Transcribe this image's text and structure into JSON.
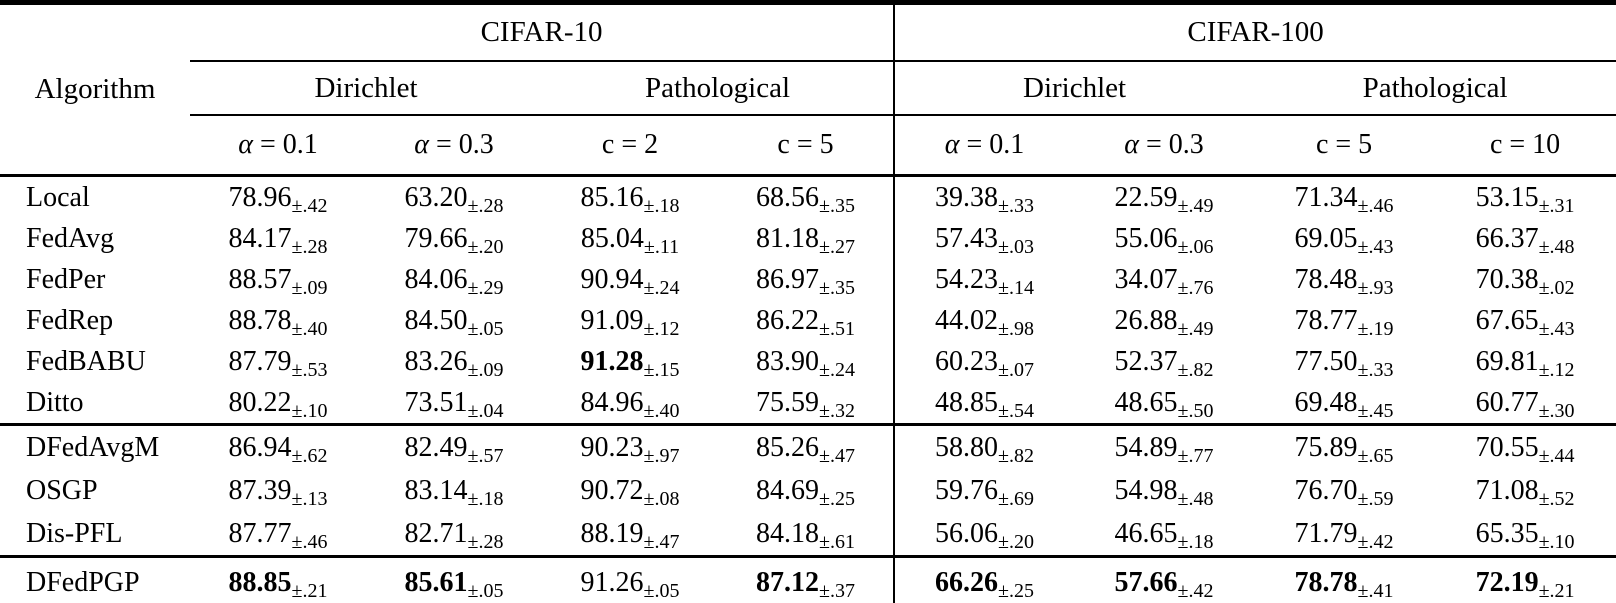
{
  "colors": {
    "text": "#000000",
    "background": "#ffffff",
    "rule": "#000000"
  },
  "table": {
    "corner_header": "Algorithm",
    "datasets": [
      {
        "name": "CIFAR-10",
        "partitions": [
          {
            "name": "Dirichlet",
            "columns": [
              "α = 0.1",
              "α = 0.3"
            ]
          },
          {
            "name": "Pathological",
            "columns": [
              "c = 2",
              "c = 5"
            ]
          }
        ]
      },
      {
        "name": "CIFAR-100",
        "partitions": [
          {
            "name": "Dirichlet",
            "columns": [
              "α = 0.1",
              "α = 0.3"
            ]
          },
          {
            "name": "Pathological",
            "columns": [
              "c = 5",
              "c = 10"
            ]
          }
        ]
      }
    ],
    "sections": [
      {
        "rows": [
          {
            "name": "Local",
            "cells": [
              [
                "78.96",
                "±.42"
              ],
              [
                "63.20",
                "±.28"
              ],
              [
                "85.16",
                "±.18"
              ],
              [
                "68.56",
                "±.35"
              ],
              [
                "39.38",
                "±.33"
              ],
              [
                "22.59",
                "±.49"
              ],
              [
                "71.34",
                "±.46"
              ],
              [
                "53.15",
                "±.31"
              ]
            ]
          },
          {
            "name": "FedAvg",
            "cells": [
              [
                "84.17",
                "±.28"
              ],
              [
                "79.66",
                "±.20"
              ],
              [
                "85.04",
                "±.11"
              ],
              [
                "81.18",
                "±.27"
              ],
              [
                "57.43",
                "±.03"
              ],
              [
                "55.06",
                "±.06"
              ],
              [
                "69.05",
                "±.43"
              ],
              [
                "66.37",
                "±.48"
              ]
            ]
          },
          {
            "name": "FedPer",
            "cells": [
              [
                "88.57",
                "±.09"
              ],
              [
                "84.06",
                "±.29"
              ],
              [
                "90.94",
                "±.24"
              ],
              [
                "86.97",
                "±.35"
              ],
              [
                "54.23",
                "±.14"
              ],
              [
                "34.07",
                "±.76"
              ],
              [
                "78.48",
                "±.93"
              ],
              [
                "70.38",
                "±.02"
              ]
            ]
          },
          {
            "name": "FedRep",
            "cells": [
              [
                "88.78",
                "±.40"
              ],
              [
                "84.50",
                "±.05"
              ],
              [
                "91.09",
                "±.12"
              ],
              [
                "86.22",
                "±.51"
              ],
              [
                "44.02",
                "±.98"
              ],
              [
                "26.88",
                "±.49"
              ],
              [
                "78.77",
                "±.19"
              ],
              [
                "67.65",
                "±.43"
              ]
            ]
          },
          {
            "name": "FedBABU",
            "cells": [
              [
                "87.79",
                "±.53"
              ],
              [
                "83.26",
                "±.09"
              ],
              [
                "91.28",
                "±.15",
                1
              ],
              [
                "83.90",
                "±.24"
              ],
              [
                "60.23",
                "±.07"
              ],
              [
                "52.37",
                "±.82"
              ],
              [
                "77.50",
                "±.33"
              ],
              [
                "69.81",
                "±.12"
              ]
            ]
          },
          {
            "name": "Ditto",
            "cells": [
              [
                "80.22",
                "±.10"
              ],
              [
                "73.51",
                "±.04"
              ],
              [
                "84.96",
                "±.40"
              ],
              [
                "75.59",
                "±.32"
              ],
              [
                "48.85",
                "±.54"
              ],
              [
                "48.65",
                "±.50"
              ],
              [
                "69.48",
                "±.45"
              ],
              [
                "60.77",
                "±.30"
              ]
            ]
          }
        ]
      },
      {
        "rows": [
          {
            "name": "DFedAvgM",
            "cells": [
              [
                "86.94",
                "±.62"
              ],
              [
                "82.49",
                "±.57"
              ],
              [
                "90.23",
                "±.97"
              ],
              [
                "85.26",
                "±.47"
              ],
              [
                "58.80",
                "±.82"
              ],
              [
                "54.89",
                "±.77"
              ],
              [
                "75.89",
                "±.65"
              ],
              [
                "70.55",
                "±.44"
              ]
            ]
          },
          {
            "name": "OSGP",
            "cells": [
              [
                "87.39",
                "±.13"
              ],
              [
                "83.14",
                "±.18"
              ],
              [
                "90.72",
                "±.08"
              ],
              [
                "84.69",
                "±.25"
              ],
              [
                "59.76",
                "±.69"
              ],
              [
                "54.98",
                "±.48"
              ],
              [
                "76.70",
                "±.59"
              ],
              [
                "71.08",
                "±.52"
              ]
            ]
          },
          {
            "name": "Dis-PFL",
            "cells": [
              [
                "87.77",
                "±.46"
              ],
              [
                "82.71",
                "±.28"
              ],
              [
                "88.19",
                "±.47"
              ],
              [
                "84.18",
                "±.61"
              ],
              [
                "56.06",
                "±.20"
              ],
              [
                "46.65",
                "±.18"
              ],
              [
                "71.79",
                "±.42"
              ],
              [
                "65.35",
                "±.10"
              ]
            ]
          }
        ]
      },
      {
        "rows": [
          {
            "name": "DFedPGP",
            "cells": [
              [
                "88.85",
                "±.21",
                1
              ],
              [
                "85.61",
                "±.05",
                1
              ],
              [
                "91.26",
                "±.05"
              ],
              [
                "87.12",
                "±.37",
                1
              ],
              [
                "66.26",
                "±.25",
                1
              ],
              [
                "57.66",
                "±.42",
                1
              ],
              [
                "78.78",
                "±.41",
                1
              ],
              [
                "72.19",
                "±.21",
                1
              ]
            ]
          }
        ]
      }
    ]
  }
}
